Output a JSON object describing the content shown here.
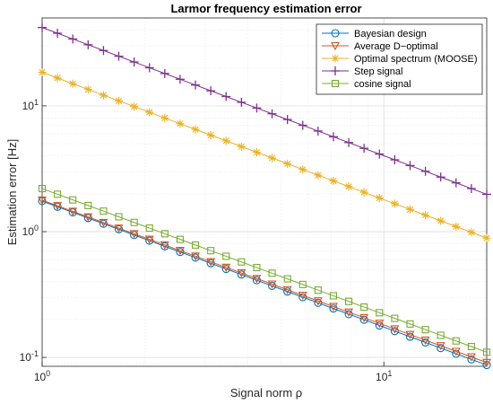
{
  "chart_data": {
    "type": "line",
    "title": "Larmor frequency estimation error",
    "xlabel": "Signal norm ρ",
    "ylabel": "Estimation error [Hz]",
    "xscale": "log",
    "yscale": "log",
    "xlim": [
      1,
      20
    ],
    "ylim": [
      0.085,
      50
    ],
    "grid": true,
    "legend_position": "top-right",
    "x_ticks": [
      {
        "value": 1,
        "base": "10",
        "exp": "0"
      },
      {
        "value": 10,
        "base": "10",
        "exp": "1"
      }
    ],
    "y_ticks": [
      {
        "value": 0.1,
        "base": "10",
        "exp": "-1"
      },
      {
        "value": 1,
        "base": "10",
        "exp": "0"
      },
      {
        "value": 10,
        "base": "10",
        "exp": "1"
      }
    ],
    "x_range": [
      1,
      20
    ],
    "num_points": 30,
    "series": [
      {
        "name": "Bayesian design",
        "marker": "circle",
        "color": "#0072BD",
        "y_start": 1.75,
        "y_end": 0.087
      },
      {
        "name": "Average D−optimal",
        "marker": "triangle-down",
        "color": "#D95319",
        "y_start": 1.78,
        "y_end": 0.091
      },
      {
        "name": "Optimal spectrum (MOOSE)",
        "marker": "asterisk",
        "color": "#EDB120",
        "y_start": 18.5,
        "y_end": 0.89
      },
      {
        "name": "Step signal",
        "marker": "plus",
        "color": "#7E2F8E",
        "y_start": 42,
        "y_end": 1.98
      },
      {
        "name": "cosine signal",
        "marker": "square",
        "color": "#77AC30",
        "y_start": 2.2,
        "y_end": 0.11
      }
    ]
  }
}
